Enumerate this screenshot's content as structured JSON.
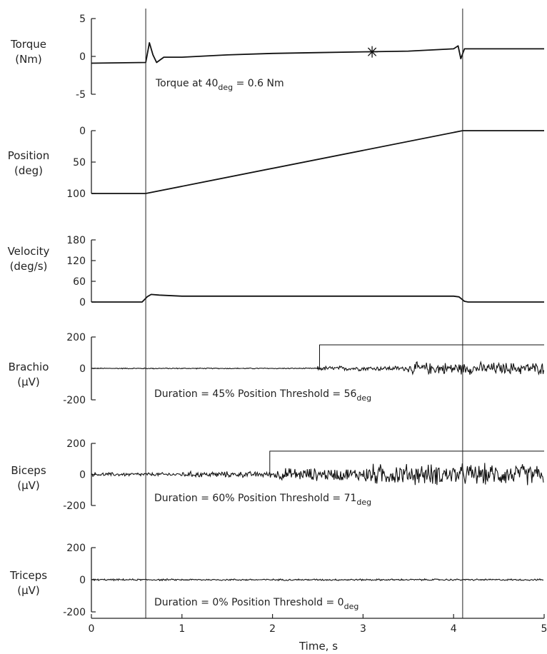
{
  "chart_data": {
    "type": "line",
    "xlabel": "Time, s",
    "xlim": [
      0,
      5
    ],
    "xticks": [
      0,
      1,
      2,
      3,
      4,
      5
    ],
    "xtick_labels": [
      "0",
      "1",
      "2",
      "3",
      "4",
      "5"
    ],
    "event_lines_x": [
      0.6,
      4.1
    ],
    "panels": [
      {
        "id": "torque",
        "ylabel": [
          "Torque",
          "(Nm)"
        ],
        "ylim": [
          -5,
          5
        ],
        "yticks": [
          5,
          0,
          -5
        ],
        "ytick_labels": [
          "5",
          "0",
          "-5"
        ],
        "series": [
          {
            "kind": "trace",
            "points": [
              [
                0,
                -0.9
              ],
              [
                0.6,
                -0.8
              ],
              [
                0.64,
                1.8
              ],
              [
                0.68,
                0.2
              ],
              [
                0.72,
                -0.8
              ],
              [
                0.8,
                -0.1
              ],
              [
                1.0,
                -0.1
              ],
              [
                1.5,
                0.2
              ],
              [
                2.0,
                0.4
              ],
              [
                2.5,
                0.5
              ],
              [
                3.0,
                0.6
              ],
              [
                3.5,
                0.7
              ],
              [
                4.0,
                1.0
              ],
              [
                4.05,
                1.4
              ],
              [
                4.08,
                -0.3
              ],
              [
                4.12,
                1.0
              ],
              [
                5,
                1.0
              ]
            ]
          }
        ],
        "marker": {
          "symbol": "asterisk",
          "x": 3.1,
          "y": 0.6
        },
        "annotation": {
          "text": "Torque at 40",
          "sub": "deg",
          "after": " = 0.6 Nm"
        }
      },
      {
        "id": "position",
        "ylabel": [
          "Position",
          "(deg)"
        ],
        "ylim": [
          0,
          100
        ],
        "invert": true,
        "yticks": [
          0,
          50,
          100
        ],
        "ytick_labels": [
          "0",
          "50",
          "100"
        ],
        "series": [
          {
            "kind": "trace",
            "points": [
              [
                0,
                100
              ],
              [
                0.6,
                100
              ],
              [
                4.1,
                0
              ],
              [
                5,
                0
              ]
            ]
          }
        ]
      },
      {
        "id": "velocity",
        "ylabel": [
          "Velocity",
          "(deg/s)"
        ],
        "ylim": [
          0,
          180
        ],
        "yticks": [
          180,
          120,
          60,
          0
        ],
        "ytick_labels": [
          "180",
          "120",
          "60",
          "0"
        ],
        "series": [
          {
            "kind": "trace",
            "points": [
              [
                0,
                0
              ],
              [
                0.56,
                0
              ],
              [
                0.62,
                16
              ],
              [
                0.66,
                22
              ],
              [
                0.75,
                20
              ],
              [
                1.0,
                17
              ],
              [
                2.0,
                17
              ],
              [
                3.0,
                17
              ],
              [
                4.0,
                17
              ],
              [
                4.06,
                15
              ],
              [
                4.12,
                2
              ],
              [
                4.16,
                0
              ],
              [
                5,
                0
              ]
            ]
          }
        ]
      },
      {
        "id": "brachio",
        "ylabel": [
          "Brachio",
          "(µV)"
        ],
        "ylim": [
          -200,
          200
        ],
        "yticks": [
          200,
          0,
          -200
        ],
        "ytick_labels": [
          "200",
          "0",
          "-200"
        ],
        "series": [
          {
            "kind": "emg",
            "segments": [
              [
                0,
                2.5,
                4
              ],
              [
                2.5,
                3.5,
                18
              ],
              [
                3.5,
                5,
                45
              ]
            ]
          },
          {
            "kind": "step",
            "points": [
              [
                2.52,
                0
              ],
              [
                2.52,
                150
              ],
              [
                5,
                150
              ]
            ]
          }
        ],
        "annotation": {
          "text": "Duration = 45% Position Threshold = 56",
          "sub": "deg",
          "after": ""
        }
      },
      {
        "id": "biceps",
        "ylabel": [
          "Biceps",
          "(µV)"
        ],
        "ylim": [
          -200,
          200
        ],
        "yticks": [
          200,
          0,
          -200
        ],
        "ytick_labels": [
          "200",
          "0",
          "-200"
        ],
        "series": [
          {
            "kind": "emg",
            "segments": [
              [
                0,
                1.0,
                14
              ],
              [
                1.0,
                2.0,
                22
              ],
              [
                2.0,
                3.0,
                48
              ],
              [
                3.0,
                5,
                80
              ]
            ]
          },
          {
            "kind": "step",
            "points": [
              [
                1.97,
                0
              ],
              [
                1.97,
                150
              ],
              [
                5,
                150
              ]
            ]
          }
        ],
        "annotation": {
          "text": "Duration = 60% Position Threshold = 71",
          "sub": "deg",
          "after": ""
        }
      },
      {
        "id": "triceps",
        "ylabel": [
          "Triceps",
          "(µV)"
        ],
        "ylim": [
          -200,
          200
        ],
        "yticks": [
          200,
          0,
          -200
        ],
        "ytick_labels": [
          "200",
          "0",
          "-200"
        ],
        "series": [
          {
            "kind": "emg",
            "segments": [
              [
                0,
                5,
                6
              ]
            ]
          }
        ],
        "annotation": {
          "text": "Duration = 0% Position Threshold = 0",
          "sub": "deg",
          "after": ""
        }
      }
    ]
  }
}
